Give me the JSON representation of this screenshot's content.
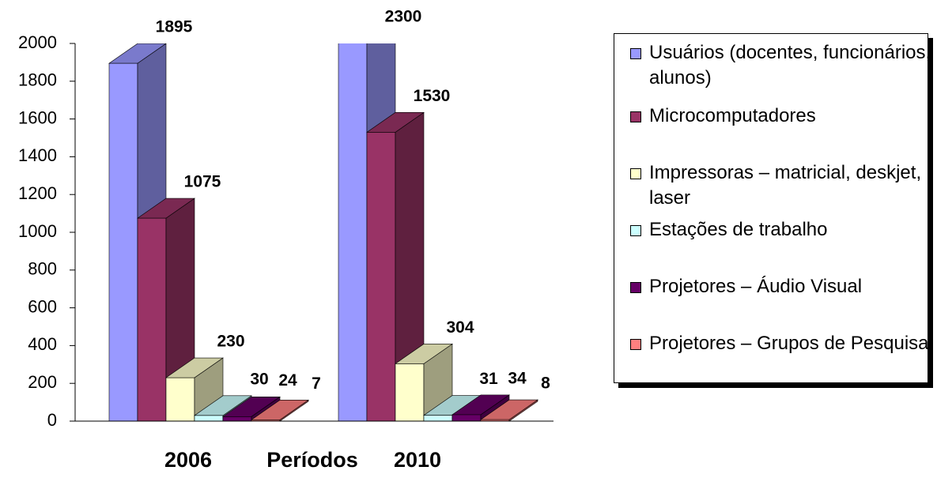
{
  "chart_data": {
    "type": "bar3d",
    "x_label": "Períodos",
    "categories": [
      "2006",
      "2010"
    ],
    "series": [
      {
        "name": "Usuários (docentes, funcionários, alunos)",
        "color": "#9999ff",
        "values": [
          1895,
          2300
        ]
      },
      {
        "name": "Microcomputadores",
        "color": "#993366",
        "values": [
          1075,
          1530
        ]
      },
      {
        "name": "Impressoras – matricial, deskjet, laser",
        "color": "#ffffcc",
        "values": [
          230,
          304
        ]
      },
      {
        "name": "Estações de trabalho",
        "color": "#ccffff",
        "values": [
          30,
          31
        ]
      },
      {
        "name": "Projetores – Áudio Visual",
        "color": "#660066",
        "values": [
          24,
          34
        ]
      },
      {
        "name": "Projetores – Grupos de Pesquisa",
        "color": "#ff8080",
        "values": [
          7,
          8
        ]
      }
    ],
    "ylim": [
      0,
      2000
    ],
    "yticks": [
      0,
      200,
      400,
      600,
      800,
      1000,
      1200,
      1400,
      1600,
      1800,
      2000
    ],
    "legend": "right"
  }
}
